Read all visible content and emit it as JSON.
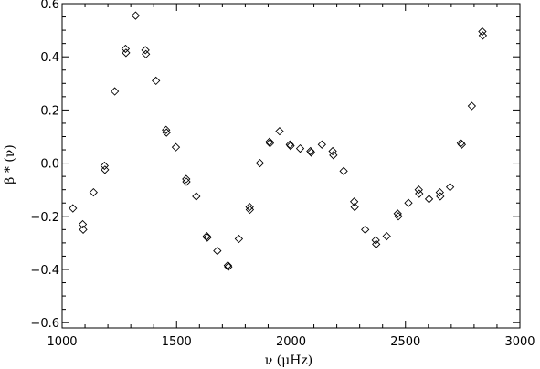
{
  "chart_data": {
    "type": "scatter",
    "marker": "diamond",
    "xlabel": "ν (μHz)",
    "ylabel": "β * (ν)",
    "xlim": [
      1000,
      3000
    ],
    "ylim": [
      -0.62,
      0.6
    ],
    "x_ticks": [
      1000,
      1500,
      2000,
      2500,
      3000
    ],
    "x_tick_labels": [
      "1000",
      "1500",
      "2000",
      "2500",
      "3000"
    ],
    "y_ticks": [
      -0.6,
      -0.4,
      -0.2,
      0.0,
      0.2,
      0.4,
      0.6
    ],
    "y_tick_labels": [
      "−0.6",
      "−0.4",
      "−0.2",
      "0.0",
      "0.2",
      "0.4",
      "0.6"
    ],
    "grid": false,
    "points": [
      {
        "x": 1047,
        "y": -0.17
      },
      {
        "x": 1090,
        "y": -0.23
      },
      {
        "x": 1092,
        "y": -0.25
      },
      {
        "x": 1137,
        "y": -0.11
      },
      {
        "x": 1185,
        "y": -0.01
      },
      {
        "x": 1187,
        "y": -0.025
      },
      {
        "x": 1230,
        "y": 0.27
      },
      {
        "x": 1277,
        "y": 0.43
      },
      {
        "x": 1279,
        "y": 0.415
      },
      {
        "x": 1321,
        "y": 0.555
      },
      {
        "x": 1364,
        "y": 0.425
      },
      {
        "x": 1366,
        "y": 0.41
      },
      {
        "x": 1410,
        "y": 0.31
      },
      {
        "x": 1454,
        "y": 0.125
      },
      {
        "x": 1456,
        "y": 0.115
      },
      {
        "x": 1497,
        "y": 0.06
      },
      {
        "x": 1542,
        "y": -0.06
      },
      {
        "x": 1543,
        "y": -0.07
      },
      {
        "x": 1586,
        "y": -0.125
      },
      {
        "x": 1632,
        "y": -0.275
      },
      {
        "x": 1634,
        "y": -0.28
      },
      {
        "x": 1678,
        "y": -0.33
      },
      {
        "x": 1724,
        "y": -0.385
      },
      {
        "x": 1726,
        "y": -0.39
      },
      {
        "x": 1772,
        "y": -0.285
      },
      {
        "x": 1819,
        "y": -0.165
      },
      {
        "x": 1820,
        "y": -0.175
      },
      {
        "x": 1864,
        "y": 0.0
      },
      {
        "x": 1906,
        "y": 0.08
      },
      {
        "x": 1908,
        "y": 0.075
      },
      {
        "x": 1950,
        "y": 0.12
      },
      {
        "x": 1995,
        "y": 0.07
      },
      {
        "x": 1998,
        "y": 0.065
      },
      {
        "x": 2040,
        "y": 0.055
      },
      {
        "x": 2085,
        "y": 0.045
      },
      {
        "x": 2088,
        "y": 0.04
      },
      {
        "x": 2135,
        "y": 0.07
      },
      {
        "x": 2182,
        "y": 0.045
      },
      {
        "x": 2185,
        "y": 0.03
      },
      {
        "x": 2230,
        "y": -0.03
      },
      {
        "x": 2276,
        "y": -0.145
      },
      {
        "x": 2278,
        "y": -0.165
      },
      {
        "x": 2324,
        "y": -0.25
      },
      {
        "x": 2370,
        "y": -0.29
      },
      {
        "x": 2372,
        "y": -0.305
      },
      {
        "x": 2418,
        "y": -0.275
      },
      {
        "x": 2466,
        "y": -0.19
      },
      {
        "x": 2469,
        "y": -0.2
      },
      {
        "x": 2513,
        "y": -0.15
      },
      {
        "x": 2558,
        "y": -0.1
      },
      {
        "x": 2560,
        "y": -0.115
      },
      {
        "x": 2603,
        "y": -0.135
      },
      {
        "x": 2650,
        "y": -0.11
      },
      {
        "x": 2652,
        "y": -0.125
      },
      {
        "x": 2695,
        "y": -0.09
      },
      {
        "x": 2742,
        "y": 0.075
      },
      {
        "x": 2746,
        "y": 0.07
      },
      {
        "x": 2790,
        "y": 0.215
      },
      {
        "x": 2836,
        "y": 0.495
      },
      {
        "x": 2838,
        "y": 0.48
      }
    ]
  }
}
